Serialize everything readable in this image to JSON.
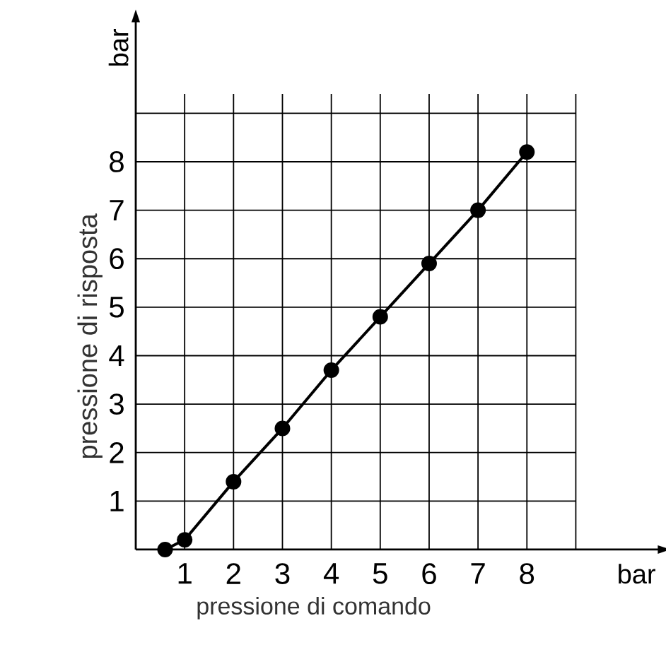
{
  "chart_data": {
    "type": "line",
    "xlabel": "pressione di comando",
    "ylabel": "pressione di risposta",
    "x": [
      0.6,
      1,
      2,
      3,
      4,
      5,
      6,
      7,
      8
    ],
    "series": [
      {
        "color": "#000000",
        "values": [
          0,
          0.2,
          1.4,
          2.5,
          3.7,
          4.8,
          5.9,
          7.0,
          8.2
        ]
      }
    ],
    "xlim": [
      0,
      10.7
    ],
    "ylim": [
      0,
      10.9
    ],
    "xticks": [
      1,
      2,
      3,
      4,
      5,
      6,
      7,
      8,
      {
        "value": 9,
        "label": null
      }
    ],
    "yticks": [
      1,
      2,
      3,
      4,
      5,
      6,
      7,
      8,
      {
        "value": 9,
        "label": null
      }
    ],
    "annotations": [
      "bar",
      "bar"
    ],
    "grid": true,
    "marker": "circle",
    "line_style": "solid"
  }
}
